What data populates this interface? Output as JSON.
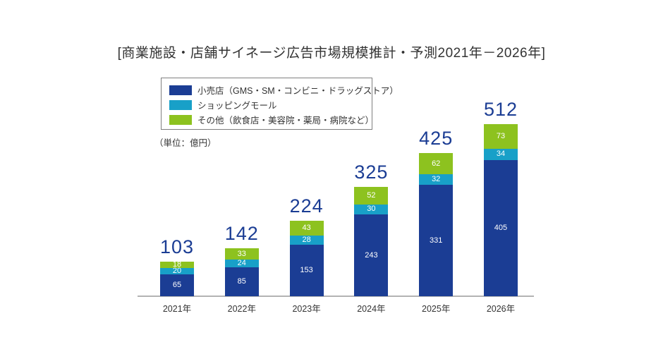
{
  "title": "[商業施設・店舗サイネージ広告市場規模推計・予測2021年－2026年]",
  "unit_label": "（単位：億円）",
  "legend": {
    "items": [
      {
        "label": "小売店（GMS・SM・コンビニ・ドラッグストア）",
        "color": "#1b3d94"
      },
      {
        "label": "ショッピングモール",
        "color": "#18a0c8"
      },
      {
        "label": "その他（飲食店・美容院・薬局・病院など）",
        "color": "#8dc21f"
      }
    ]
  },
  "chart_data": {
    "type": "bar",
    "stacked": true,
    "title": "[商業施設・店舗サイネージ広告市場規模推計・予測2021年－2026年]",
    "unit": "（単位：億円）",
    "categories": [
      "2021年",
      "2022年",
      "2023年",
      "2024年",
      "2025年",
      "2026年"
    ],
    "series": [
      {
        "name": "小売店（GMS・SM・コンビニ・ドラッグストア）",
        "color": "#1b3d94",
        "values": [
          65,
          85,
          153,
          243,
          331,
          405
        ]
      },
      {
        "name": "ショッピングモール",
        "color": "#18a0c8",
        "values": [
          20,
          24,
          28,
          30,
          32,
          34
        ]
      },
      {
        "name": "その他（飲食店・美容院・薬局・病院など）",
        "color": "#8dc21f",
        "values": [
          18,
          33,
          43,
          52,
          62,
          73
        ]
      }
    ],
    "totals": [
      103,
      142,
      224,
      325,
      425,
      512
    ],
    "ylim": [
      0,
      512
    ],
    "grid": false,
    "legend_position": "top-left",
    "total_label_color": "#1b3d94",
    "axis_line_color": "#b3b3b3",
    "segment_label_color": "#ffffff"
  }
}
